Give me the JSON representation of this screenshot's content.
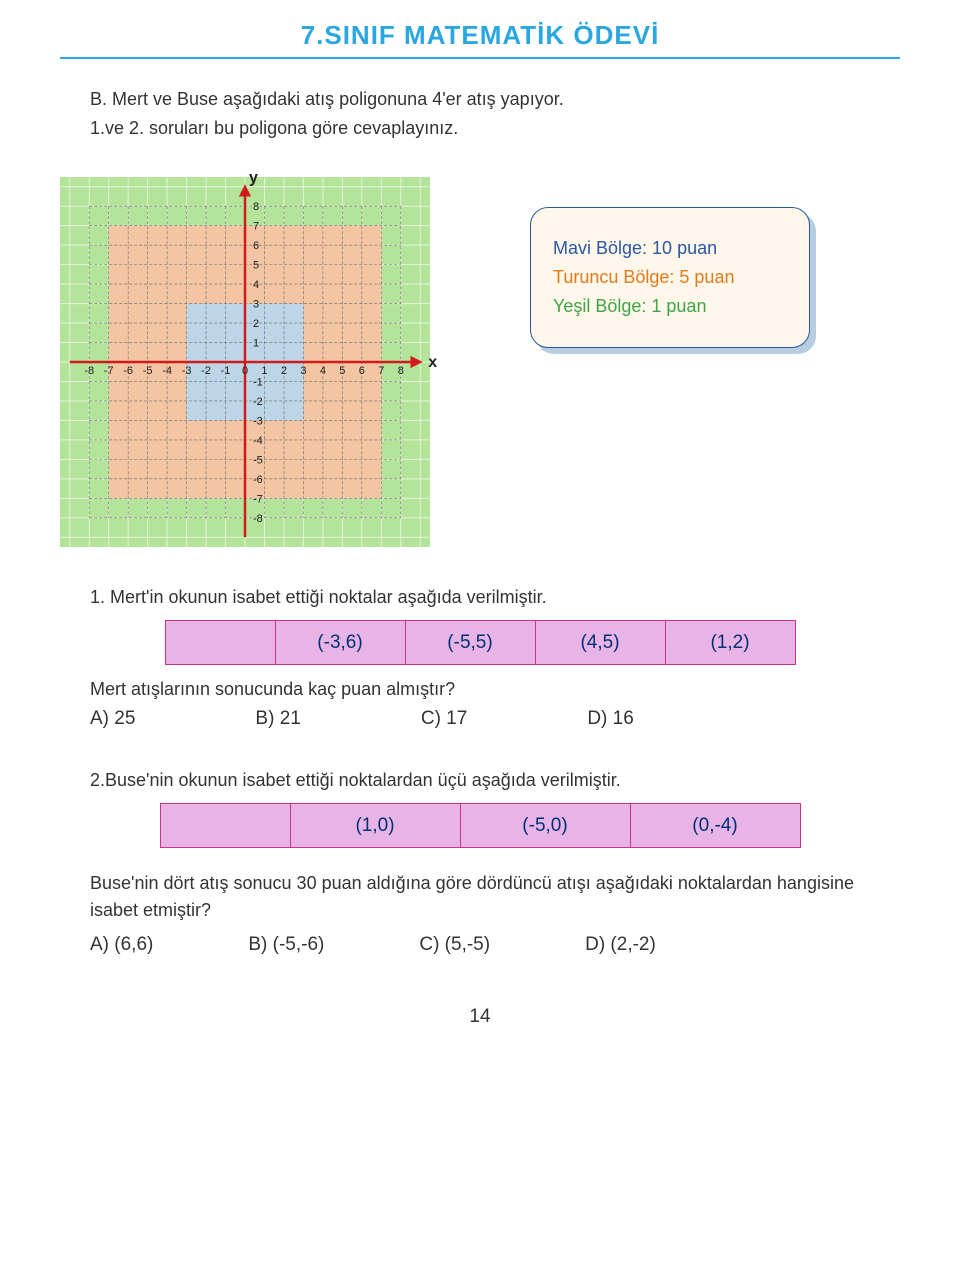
{
  "header": {
    "title": "7.SINIF MATEMATİK ÖDEVİ"
  },
  "intro": {
    "line1": "B. Mert ve Buse aşağıdaki atış poligonuna 4'er atış yapıyor.",
    "line2": "1.ve 2. soruları bu poligona göre cevaplayınız."
  },
  "chart": {
    "size": 370,
    "axis_min": -8,
    "axis_max": 8,
    "ylabel": "y",
    "xlabel": "x",
    "xticks": [
      -8,
      -7,
      -6,
      -5,
      -4,
      -3,
      -2,
      -1,
      0,
      1,
      2,
      3,
      4,
      5,
      6,
      7,
      8
    ],
    "yticks_pos": [
      1,
      2,
      3,
      4,
      5,
      6,
      7,
      8
    ],
    "yticks_neg": [
      -1,
      -2,
      -3,
      -4,
      -5,
      -6,
      -7,
      -8
    ],
    "tick_fontsize": 11,
    "outer_color": "#b4e39a",
    "outer_grid": "#e3f4d8",
    "orange_color": "#f3c5a2",
    "orange_range": 7,
    "blue_color": "#bcd6e7",
    "blue_range": 3,
    "inner_grid_color": "#6a6a6a",
    "axis_color": "#d11b1b",
    "axis_width": 2.5
  },
  "legend": {
    "blue": {
      "label": "Mavi Bölge: 10 puan",
      "color": "#2957a4"
    },
    "orange": {
      "label": "Turuncu Bölge: 5 puan",
      "color": "#e37a1e"
    },
    "green": {
      "label": "Yeşil Bölge: 1 puan",
      "color": "#3fa447"
    }
  },
  "q1": {
    "text": "1. Mert'in okunun isabet ettiği noktalar aşağıda verilmiştir.",
    "coords": [
      "(-3,6)",
      "(-5,5)",
      "(4,5)",
      "(1,2)"
    ],
    "followup": "Mert atışlarının sonucunda kaç puan almıştır?",
    "options": {
      "a": "A) 25",
      "b": "B) 21",
      "c": "C) 17",
      "d": "D) 16"
    }
  },
  "q2": {
    "text": "2.Buse'nin okunun isabet ettiği noktalardan üçü aşağıda verilmiştir.",
    "coords": [
      "(1,0)",
      "(-5,0)",
      "(0,-4)"
    ],
    "final": "Buse'nin dört atış sonucu 30 puan aldığına göre dördüncü atışı aşağıdaki noktalardan hangisine isabet etmiştir?",
    "options": {
      "a": "A) (6,6)",
      "b": "B) (-5,-6)",
      "c": "C) (5,-5)",
      "d": "D) (2,-2)"
    }
  },
  "page_number": "14"
}
